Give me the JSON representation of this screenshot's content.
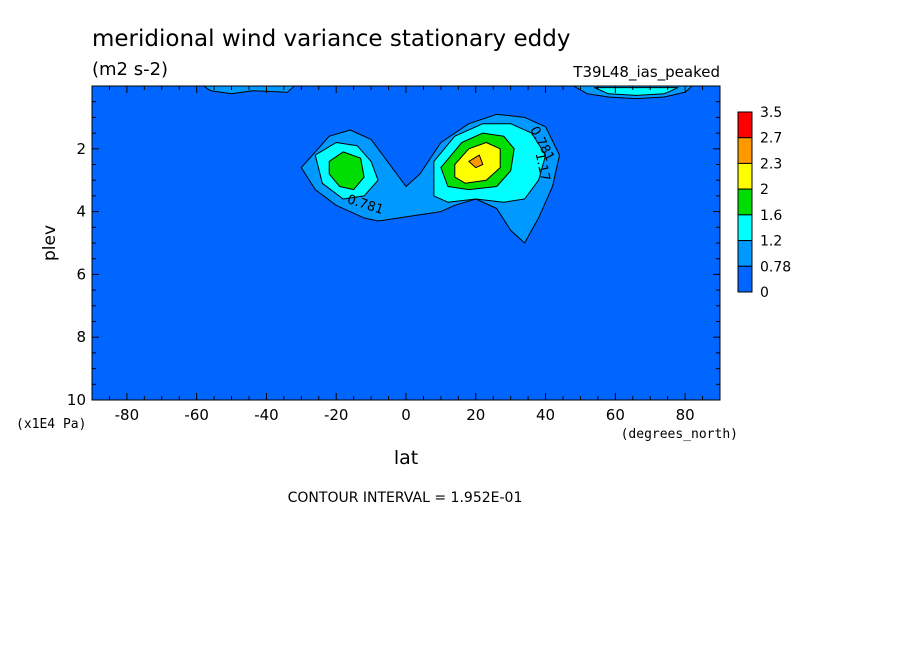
{
  "chart_data": {
    "type": "heatmap",
    "title": "meridional wind variance  stationary eddy",
    "units": "(m2 s-2)",
    "dataset_label": "T39L48_ias_peaked",
    "xlabel": "lat",
    "x_units": "(degrees_north)",
    "ylabel": "plev",
    "y_units": "(x1E4 Pa)",
    "xlim": [
      -90,
      90
    ],
    "ylim": [
      0,
      10
    ],
    "y_inverted": true,
    "x_ticks": [
      -80,
      -60,
      -40,
      -20,
      0,
      20,
      40,
      60,
      80
    ],
    "y_ticks": [
      2,
      4,
      6,
      8,
      10
    ],
    "colorbar": {
      "labels": [
        "3.5",
        "2.7",
        "2.3",
        "2",
        "1.6",
        "1.2",
        "0.78",
        "0"
      ],
      "colors": [
        "#ff0000",
        "#ff9900",
        "#ffff00",
        "#00dd00",
        "#00ffff",
        "#0099ff",
        "#0066ff"
      ]
    },
    "contour_labels": [
      {
        "text": "0.781",
        "lat": 38,
        "plev": 1.9,
        "rotate": 62
      },
      {
        "text": "1.17",
        "lat": 38,
        "plev": 2.6,
        "rotate": 78
      },
      {
        "text": "0.781",
        "lat": -12,
        "plev": 3.9,
        "rotate": 18
      }
    ],
    "contour_interval_note": "CONTOUR INTERVAL = 1.952E-01",
    "regions": [
      {
        "level": 0,
        "points": [
          [
            -90,
            0
          ],
          [
            90,
            0
          ],
          [
            90,
            10
          ],
          [
            -90,
            10
          ]
        ]
      },
      {
        "level": 1,
        "points": [
          [
            -26,
            2.1
          ],
          [
            -22,
            1.6
          ],
          [
            -16,
            1.4
          ],
          [
            -10,
            1.7
          ],
          [
            -6,
            2.3
          ],
          [
            0,
            3.2
          ],
          [
            4,
            2.8
          ],
          [
            10,
            1.8
          ],
          [
            18,
            1.2
          ],
          [
            26,
            0.9
          ],
          [
            34,
            1.0
          ],
          [
            40,
            1.3
          ],
          [
            44,
            2.2
          ],
          [
            42,
            3.2
          ],
          [
            38,
            4.2
          ],
          [
            34,
            5.0
          ],
          [
            30,
            4.6
          ],
          [
            26,
            3.9
          ],
          [
            20,
            3.6
          ],
          [
            14,
            3.8
          ],
          [
            10,
            4.0
          ],
          [
            4,
            4.1
          ],
          [
            -2,
            4.2
          ],
          [
            -8,
            4.3
          ],
          [
            -12,
            4.2
          ],
          [
            -20,
            3.8
          ],
          [
            -26,
            3.3
          ],
          [
            -30,
            2.6
          ]
        ]
      },
      {
        "level": 1,
        "points": [
          [
            -58,
            0
          ],
          [
            -32,
            0
          ],
          [
            -34,
            0.2
          ],
          [
            -44,
            0.15
          ],
          [
            -50,
            0.25
          ],
          [
            -56,
            0.15
          ]
        ]
      },
      {
        "level": 1,
        "points": [
          [
            48,
            0
          ],
          [
            82,
            0
          ],
          [
            80,
            0.2
          ],
          [
            74,
            0.35
          ],
          [
            66,
            0.4
          ],
          [
            58,
            0.35
          ],
          [
            52,
            0.25
          ]
        ]
      },
      {
        "level": 2,
        "points": [
          [
            -26,
            2.2
          ],
          [
            -20,
            1.8
          ],
          [
            -14,
            1.9
          ],
          [
            -10,
            2.4
          ],
          [
            -8,
            3.0
          ],
          [
            -12,
            3.5
          ],
          [
            -18,
            3.6
          ],
          [
            -24,
            3.1
          ]
        ]
      },
      {
        "level": 2,
        "points": [
          [
            8,
            2.4
          ],
          [
            14,
            1.6
          ],
          [
            22,
            1.2
          ],
          [
            30,
            1.2
          ],
          [
            36,
            1.5
          ],
          [
            40,
            2.2
          ],
          [
            38,
            3.0
          ],
          [
            34,
            3.6
          ],
          [
            28,
            3.7
          ],
          [
            20,
            3.6
          ],
          [
            12,
            3.7
          ],
          [
            8,
            3.5
          ]
        ]
      },
      {
        "level": 2,
        "points": [
          [
            54,
            0.05
          ],
          [
            78,
            0.05
          ],
          [
            74,
            0.25
          ],
          [
            66,
            0.3
          ],
          [
            58,
            0.25
          ]
        ]
      },
      {
        "level": 3,
        "points": [
          [
            -22,
            2.4
          ],
          [
            -18,
            2.1
          ],
          [
            -13,
            2.3
          ],
          [
            -12,
            2.9
          ],
          [
            -15,
            3.3
          ],
          [
            -19,
            3.2
          ],
          [
            -22,
            2.8
          ]
        ]
      },
      {
        "level": 3,
        "points": [
          [
            10,
            2.6
          ],
          [
            16,
            1.8
          ],
          [
            22,
            1.5
          ],
          [
            28,
            1.6
          ],
          [
            31,
            2.0
          ],
          [
            30,
            2.7
          ],
          [
            26,
            3.2
          ],
          [
            18,
            3.3
          ],
          [
            12,
            3.2
          ]
        ]
      },
      {
        "level": 4,
        "points": [
          [
            14,
            2.5
          ],
          [
            18,
            2.0
          ],
          [
            23,
            1.8
          ],
          [
            27,
            2.0
          ],
          [
            27,
            2.6
          ],
          [
            23,
            3.0
          ],
          [
            17,
            3.1
          ],
          [
            14,
            2.9
          ]
        ]
      },
      {
        "level": 5,
        "points": [
          [
            18,
            2.4
          ],
          [
            21,
            2.2
          ],
          [
            22,
            2.5
          ],
          [
            20,
            2.6
          ]
        ]
      }
    ]
  }
}
